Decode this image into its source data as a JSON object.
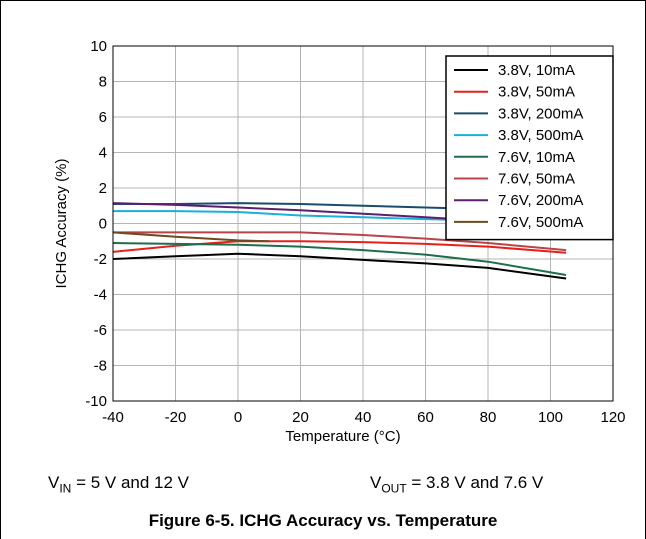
{
  "chart_data": {
    "type": "line",
    "title": "",
    "xlabel": "Temperature (°C)",
    "ylabel": "ICHG Accuracy (%)",
    "xlim": [
      -40,
      120
    ],
    "ylim": [
      -10,
      10
    ],
    "xticks": [
      -40,
      -20,
      0,
      20,
      40,
      60,
      80,
      100,
      120
    ],
    "yticks": [
      -10,
      -8,
      -6,
      -4,
      -2,
      0,
      2,
      4,
      6,
      8,
      10
    ],
    "grid": true,
    "legend_position": "top-right",
    "series": [
      {
        "name": "3.8V, 10mA",
        "color": "#000000",
        "x": [
          -40,
          -20,
          0,
          20,
          40,
          60,
          80,
          105
        ],
        "y": [
          -2.0,
          -1.85,
          -1.7,
          -1.85,
          -2.05,
          -2.25,
          -2.5,
          -3.1
        ]
      },
      {
        "name": "3.8V, 50mA",
        "color": "#e8201a",
        "x": [
          -40,
          -20,
          0,
          20,
          40,
          60,
          80,
          105
        ],
        "y": [
          -1.6,
          -1.25,
          -1.0,
          -1.0,
          -1.05,
          -1.15,
          -1.3,
          -1.65
        ]
      },
      {
        "name": "3.8V, 200mA",
        "color": "#1a4c6e",
        "x": [
          -40,
          -20,
          0,
          20,
          40,
          60,
          80
        ],
        "y": [
          1.1,
          1.1,
          1.15,
          1.1,
          1.0,
          0.9,
          0.8
        ]
      },
      {
        "name": "3.8V, 500mA",
        "color": "#1ab0d8",
        "x": [
          -40,
          -20,
          0,
          20,
          40,
          60,
          70
        ],
        "y": [
          0.7,
          0.7,
          0.65,
          0.45,
          0.35,
          0.25,
          0.2
        ]
      },
      {
        "name": "7.6V, 10mA",
        "color": "#1f6e4a",
        "x": [
          -40,
          -20,
          0,
          20,
          40,
          60,
          80,
          105
        ],
        "y": [
          -1.1,
          -1.15,
          -1.2,
          -1.3,
          -1.5,
          -1.75,
          -2.15,
          -2.9
        ]
      },
      {
        "name": "7.6V, 50mA",
        "color": "#b8444a",
        "x": [
          -40,
          -20,
          0,
          20,
          40,
          60,
          80,
          105
        ],
        "y": [
          -0.5,
          -0.5,
          -0.5,
          -0.5,
          -0.65,
          -0.85,
          -1.1,
          -1.5
        ]
      },
      {
        "name": "7.6V, 200mA",
        "color": "#5e1e6e",
        "x": [
          -40,
          -20,
          0,
          20,
          40,
          60,
          70
        ],
        "y": [
          1.15,
          1.05,
          0.9,
          0.75,
          0.55,
          0.35,
          0.25
        ]
      },
      {
        "name": "7.6V, 500mA",
        "color": "#6e4a1e",
        "x": [
          -40,
          -20,
          0,
          10
        ],
        "y": [
          -0.5,
          -0.75,
          -0.95,
          -1.0
        ]
      }
    ]
  },
  "conditions": {
    "vin_sym": "V",
    "vin_sub": "IN",
    "vin_text": " = 5 V and 12 V",
    "vout_sym": "V",
    "vout_sub": "OUT",
    "vout_text": " = 3.8 V and 7.6 V"
  },
  "caption": "Figure 6-5. ICHG Accuracy vs. Temperature"
}
